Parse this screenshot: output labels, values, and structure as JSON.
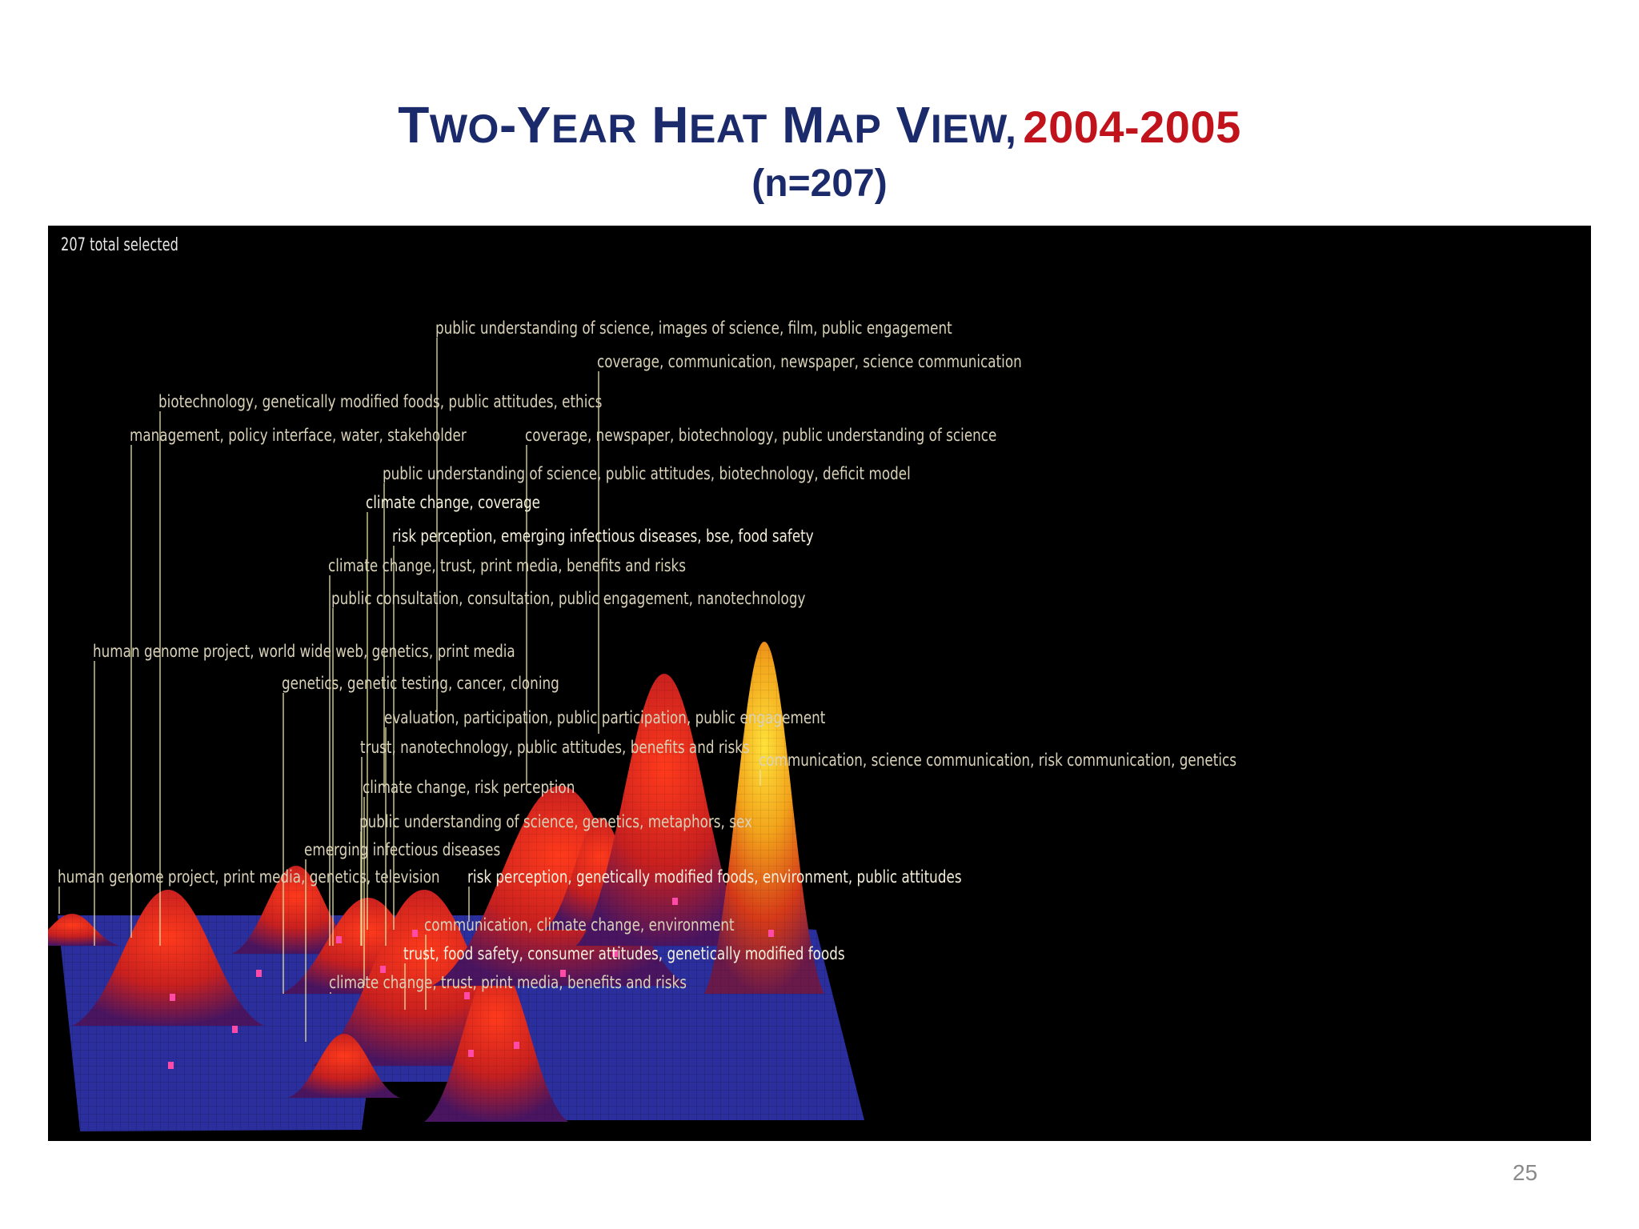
{
  "slide": {
    "title": {
      "T": "T",
      "wo": "WO",
      "dash": "-",
      "Y": "Y",
      "ear": "EAR",
      "H": "H",
      "eat": "EAT",
      "M": "M",
      "ap": "AP",
      "V": "V",
      "iew": "IEW,",
      "year": "2004-2005"
    },
    "subtitle": "(n=207)",
    "page_number": "25"
  },
  "visualization": {
    "selected_count": "207 total selected",
    "colors": {
      "background": "#000000",
      "plane": "#2b2f9e",
      "low": "#7a1040",
      "mid": "#d8281a",
      "high": "#f2c21c"
    },
    "labels": [
      "public understanding of science, images of science, film, public engagement",
      "coverage, communication, newspaper, science communication",
      "biotechnology, genetically modified foods, public attitudes, ethics",
      "management, policy interface, water, stakeholder",
      "coverage, newspaper, biotechnology, public understanding of science",
      "public understanding of science, public attitudes, biotechnology, deficit model",
      "climate change, coverage",
      "risk perception, emerging infectious diseases, bse, food safety",
      "climate change, trust, print media, benefits and risks",
      "public consultation, consultation, public engagement, nanotechnology",
      "human genome project, world wide web, genetics, print media",
      "genetics, genetic testing, cancer, cloning",
      "evaluation, participation, public participation, public engagement",
      "trust, nanotechnology, public attitudes, benefits and risks",
      "communication, science communication, risk communication, genetics",
      "climate change, risk perception",
      "public understanding of science, genetics, metaphors, sex",
      "emerging infectious diseases",
      "human genome project, print media, genetics, television",
      "risk perception, genetically modified foods, environment, public attitudes",
      "communication, climate change, environment",
      "trust, food safety, consumer attitudes, genetically modified foods",
      "climate change, trust, print media, benefits and risks"
    ]
  }
}
